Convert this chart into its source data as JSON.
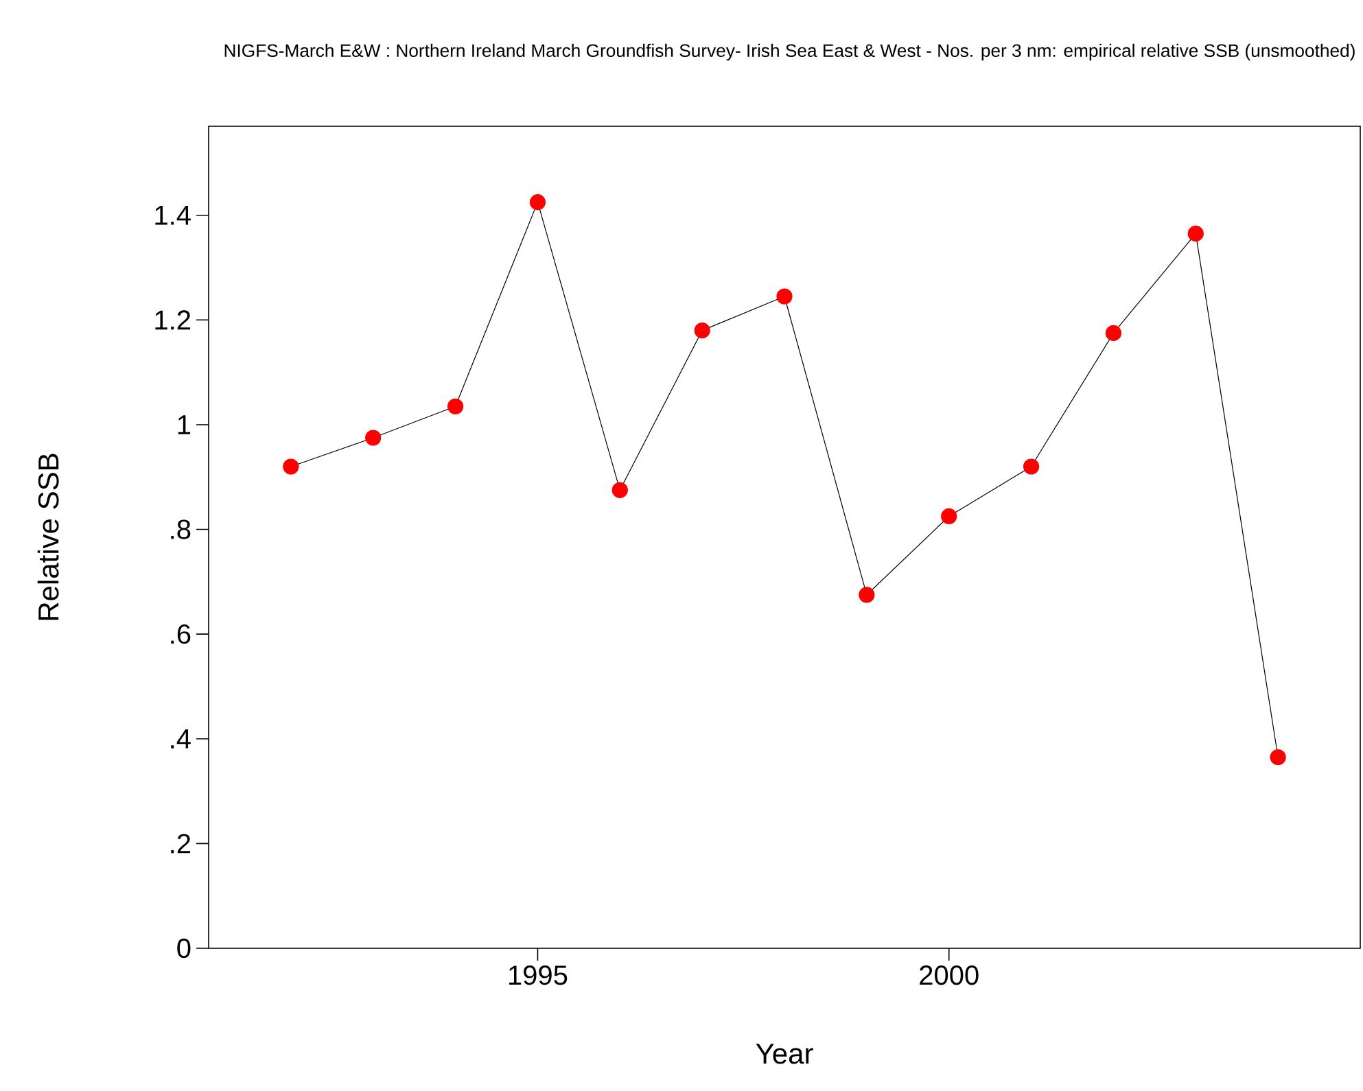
{
  "chart_data": {
    "type": "line",
    "title": "NIGFS-March E&W : Northern Ireland March Groundfish Survey- Irish Sea East & West - Nos. per 3 nm: empirical relative SSB (unsmoothed)",
    "xlabel": "Year",
    "ylabel": "Relative SSB",
    "x": [
      1992,
      1993,
      1994,
      1995,
      1996,
      1997,
      1998,
      1999,
      2000,
      2001,
      2002,
      2003,
      2004
    ],
    "series": [
      {
        "color": "#ff0000",
        "values": [
          0.92,
          0.975,
          1.035,
          1.425,
          0.875,
          1.18,
          1.245,
          0.675,
          0.825,
          0.92,
          1.175,
          1.365,
          0.365
        ]
      }
    ],
    "xlim": [
      1991,
      2005
    ],
    "ylim": [
      0,
      1.57
    ],
    "xticks": [
      1995,
      2000
    ],
    "yticks": [
      0,
      {
        "value": 0.2,
        "label": ".2"
      },
      {
        "value": 0.4,
        "label": ".4"
      },
      {
        "value": 0.6,
        "label": ".6"
      },
      {
        "value": 0.8,
        "label": ".8"
      },
      1,
      {
        "value": 1.2,
        "label": "1.2"
      },
      {
        "value": 1.4,
        "label": "1.4"
      }
    ],
    "marker": "circle",
    "line_style": "solid",
    "grid": false
  }
}
